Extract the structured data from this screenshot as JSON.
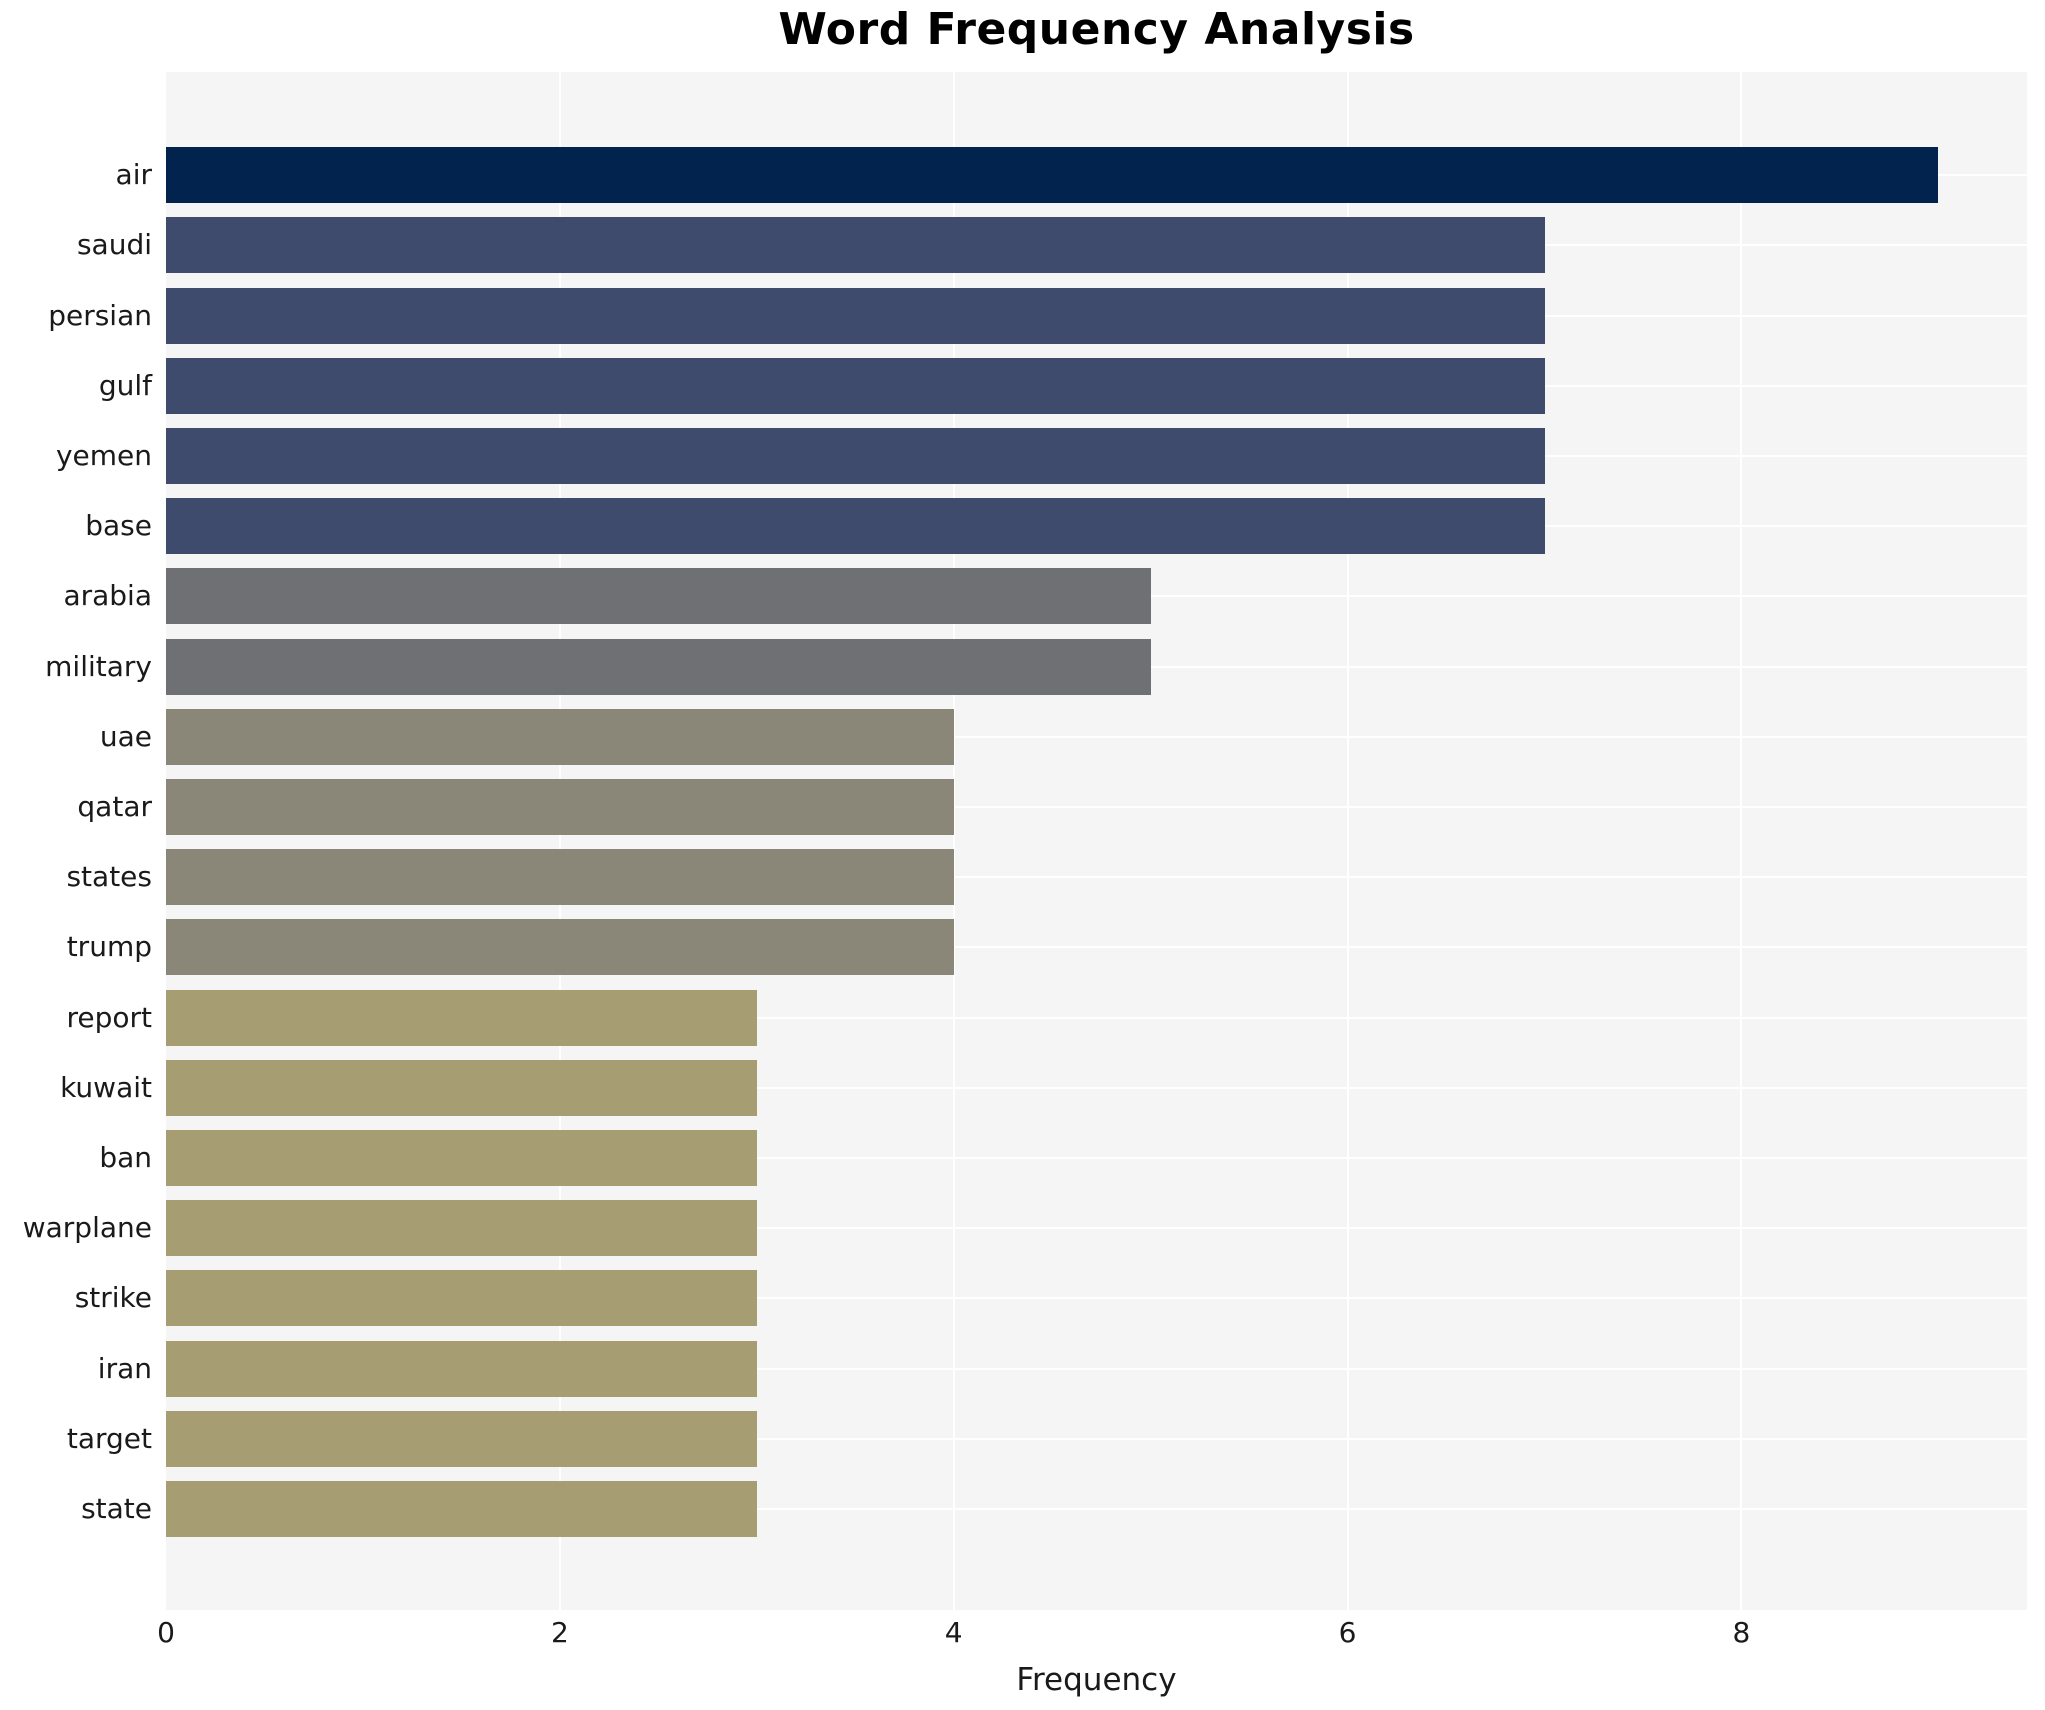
{
  "chart_data": {
    "type": "bar",
    "orientation": "horizontal",
    "title": "Word Frequency Analysis",
    "xlabel": "Frequency",
    "ylabel": "",
    "categories": [
      "air",
      "saudi",
      "persian",
      "gulf",
      "yemen",
      "base",
      "arabia",
      "military",
      "uae",
      "qatar",
      "states",
      "trump",
      "report",
      "kuwait",
      "ban",
      "warplane",
      "strike",
      "iran",
      "target",
      "state"
    ],
    "values": [
      9,
      7,
      7,
      7,
      7,
      7,
      5,
      5,
      4,
      4,
      4,
      4,
      3,
      3,
      3,
      3,
      3,
      3,
      3,
      3
    ],
    "bar_colors": [
      "#02234d",
      "#3e4b6d",
      "#3e4b6d",
      "#3e4b6d",
      "#3e4b6d",
      "#3e4b6d",
      "#6f7073",
      "#6f7073",
      "#8a8778",
      "#8a8778",
      "#8a8778",
      "#8a8778",
      "#a79d72",
      "#a79d72",
      "#a79d72",
      "#a79d72",
      "#a79d72",
      "#a79d72",
      "#a79d72",
      "#a79d72"
    ],
    "xticks": [
      0,
      2,
      4,
      6,
      8
    ],
    "xlim": [
      0,
      9.45
    ],
    "grid": true,
    "legend": false,
    "plot_background": "#f5f5f6",
    "grid_color": "#ffffff",
    "text_color": "#1a1a1a"
  }
}
